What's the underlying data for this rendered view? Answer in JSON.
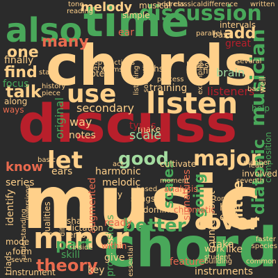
{
  "palette": {
    "background": "#2b2b2b",
    "cream": "#ffd08a",
    "green": "#49a85a",
    "red": "#b81f2b",
    "mint": "#a4dca0",
    "salmon": "#e96a4e",
    "dark_green": "#1f7a3a"
  },
  "words": [
    {
      "text": "music",
      "color": "cream"
    },
    {
      "text": "discuss",
      "color": "red"
    },
    {
      "text": "chords",
      "color": "cream"
    },
    {
      "text": "chord",
      "color": "green"
    },
    {
      "text": "time",
      "color": "green"
    },
    {
      "text": "also",
      "color": "green"
    },
    {
      "text": "listen",
      "color": "cream"
    },
    {
      "text": "discussion",
      "color": "green"
    },
    {
      "text": "minor",
      "color": "cream"
    },
    {
      "text": "theory",
      "color": "salmon"
    },
    {
      "text": "use",
      "color": "cream"
    },
    {
      "text": "let",
      "color": "cream"
    },
    {
      "text": "good",
      "color": "mint"
    },
    {
      "text": "major",
      "color": "cream"
    },
    {
      "text": "better",
      "color": "green"
    },
    {
      "text": "cover",
      "color": "cream"
    },
    {
      "text": "part",
      "color": "green"
    },
    {
      "text": "musician",
      "color": "green"
    },
    {
      "text": "diatonic",
      "color": "green"
    },
    {
      "text": "melody",
      "color": "cream"
    },
    {
      "text": "add",
      "color": "cream"
    },
    {
      "text": "talk",
      "color": "cream"
    },
    {
      "text": "one",
      "color": "cream"
    },
    {
      "text": "find",
      "color": "cream"
    },
    {
      "text": "many",
      "color": "salmon"
    },
    {
      "text": "going",
      "color": "green"
    },
    {
      "text": "scales",
      "color": "green"
    },
    {
      "text": "little",
      "color": "cream"
    },
    {
      "text": "know",
      "color": "salmon"
    },
    {
      "text": "way",
      "color": "cream"
    },
    {
      "text": "scale",
      "color": "mint"
    },
    {
      "text": "secondary",
      "color": "cream"
    },
    {
      "text": "original",
      "color": "green"
    },
    {
      "text": "progressions",
      "color": "green"
    },
    {
      "text": "harmonic",
      "color": "cream"
    },
    {
      "text": "melodic",
      "color": "cream"
    },
    {
      "text": "series",
      "color": "cream"
    },
    {
      "text": "identify",
      "color": "cream"
    },
    {
      "text": "augmented",
      "color": "salmon"
    },
    {
      "text": "ears",
      "color": "cream"
    },
    {
      "text": "notes",
      "color": "cream"
    },
    {
      "text": "signatures",
      "color": "salmon"
    },
    {
      "text": "counterpoint",
      "color": "cream"
    },
    {
      "text": "composition",
      "color": "green"
    },
    {
      "text": "listeners",
      "color": "red"
    },
    {
      "text": "training",
      "color": "cream"
    },
    {
      "text": "first",
      "color": "cream"
    },
    {
      "text": "brain",
      "color": "mint"
    },
    {
      "text": "blues",
      "color": "cream"
    },
    {
      "text": "fifths",
      "color": "cream"
    },
    {
      "text": "focus",
      "color": "green"
    },
    {
      "text": "finally",
      "color": "cream"
    },
    {
      "text": "tone",
      "color": "cream"
    },
    {
      "text": "reading",
      "color": "cream"
    },
    {
      "text": "musical",
      "color": "cream"
    },
    {
      "text": "simple",
      "color": "cream"
    },
    {
      "text": "intervals",
      "color": "cream"
    },
    {
      "text": "bass",
      "color": "cream"
    },
    {
      "text": "great",
      "color": "red"
    },
    {
      "text": "ear",
      "color": "salmon"
    },
    {
      "text": "note",
      "color": "cream"
    },
    {
      "text": "keep",
      "color": "cream"
    },
    {
      "text": "every",
      "color": "cream"
    },
    {
      "text": "forms",
      "color": "cream"
    },
    {
      "text": "process",
      "color": "cream"
    },
    {
      "text": "history",
      "color": "cream"
    },
    {
      "text": "piece",
      "color": "cream"
    },
    {
      "text": "along",
      "color": "cream"
    },
    {
      "text": "ways",
      "color": "salmon"
    },
    {
      "text": "make",
      "color": "cream"
    },
    {
      "text": "help",
      "color": "green"
    },
    {
      "text": "may",
      "color": "cream"
    },
    {
      "text": "songs",
      "color": "cream"
    },
    {
      "text": "dominant",
      "color": "cream"
    },
    {
      "text": "chromatic",
      "color": "salmon"
    },
    {
      "text": "hear",
      "color": "cream"
    },
    {
      "text": "end",
      "color": "cream"
    },
    {
      "text": "tones",
      "color": "cream"
    },
    {
      "text": "ready",
      "color": "salmon"
    },
    {
      "text": "share",
      "color": "cream"
    },
    {
      "text": "dictation",
      "color": "cream"
    },
    {
      "text": "qualities",
      "color": "cream"
    },
    {
      "text": "different",
      "color": "cream"
    },
    {
      "text": "enjoy",
      "color": "cream"
    },
    {
      "text": "skill",
      "color": "green"
    },
    {
      "text": "form",
      "color": "cream"
    },
    {
      "text": "seven",
      "color": "cream"
    },
    {
      "text": "triads",
      "color": "cream"
    },
    {
      "text": "mode",
      "color": "cream"
    },
    {
      "text": "give",
      "color": "cream"
    },
    {
      "text": "key",
      "color": "cream"
    },
    {
      "text": "within",
      "color": "salmon"
    },
    {
      "text": "instrument",
      "color": "cream"
    },
    {
      "text": "instruments",
      "color": "cream"
    },
    {
      "text": "feature",
      "color": "salmon"
    },
    {
      "text": "like",
      "color": "cream"
    },
    {
      "text": "take",
      "color": "cream"
    },
    {
      "text": "common",
      "color": "cream"
    },
    {
      "text": "building",
      "color": "cream"
    },
    {
      "text": "faster",
      "color": "cream"
    },
    {
      "text": "species",
      "color": "cream"
    },
    {
      "text": "work",
      "color": "cream"
    },
    {
      "text": "student",
      "color": "cream"
    },
    {
      "text": "essential",
      "color": "cream"
    },
    {
      "text": "inside",
      "color": "cream"
    },
    {
      "text": "moment",
      "color": "cream"
    },
    {
      "text": "analysis",
      "color": "salmon"
    },
    {
      "text": "cultivate",
      "color": "cream"
    },
    {
      "text": "number",
      "color": "cream"
    },
    {
      "text": "involved",
      "color": "cream"
    },
    {
      "text": "seventh",
      "color": "cream"
    },
    {
      "text": "types",
      "color": "red"
    },
    {
      "text": "basic",
      "color": "cream"
    },
    {
      "text": "act",
      "color": "cream"
    },
    {
      "text": "start",
      "color": "cream"
    },
    {
      "text": "something",
      "color": "cream"
    },
    {
      "text": "listening",
      "color": "cream"
    },
    {
      "text": "examples",
      "color": "cream"
    },
    {
      "text": "several",
      "color": "cream"
    },
    {
      "text": "parallel",
      "color": "cream"
    },
    {
      "text": "well",
      "color": "cream"
    },
    {
      "text": "back",
      "color": "cream"
    },
    {
      "text": "lead",
      "color": "cream"
    },
    {
      "text": "based",
      "color": "cream"
    },
    {
      "text": "functions",
      "color": "cream"
    },
    {
      "text": "classical",
      "color": "cream"
    },
    {
      "text": "difference",
      "color": "cream"
    },
    {
      "text": "written",
      "color": "cream"
    },
    {
      "text": "address",
      "color": "cream"
    },
    {
      "text": "understanding",
      "color": "cream"
    },
    {
      "text": "inversions",
      "color": "cream"
    }
  ]
}
